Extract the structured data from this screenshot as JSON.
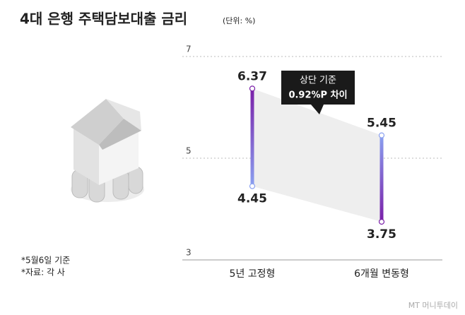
{
  "chart_data": {
    "type": "range",
    "title": "4대 은행 주택담보대출 금리",
    "subtitle": "(단위: %)",
    "categories": [
      "5년 고정형",
      "6개월 변동형"
    ],
    "high": [
      6.37,
      5.45
    ],
    "low": [
      4.45,
      3.75
    ],
    "bar_colors": [
      [
        "#7a1fa8",
        "#8aa0f0"
      ],
      [
        "#8aa0f0",
        "#7a1fa8"
      ]
    ],
    "band_color": "#eeeeee",
    "ylim": [
      3,
      7
    ],
    "yticks": [
      3,
      5,
      7
    ],
    "grid": true,
    "annotation": [
      "상단 기준",
      "0.92%P 차이"
    ],
    "notes": [
      "*5월6일 기준",
      "*자료: 각 사"
    ],
    "source_logo": "MT 머니투데이"
  }
}
